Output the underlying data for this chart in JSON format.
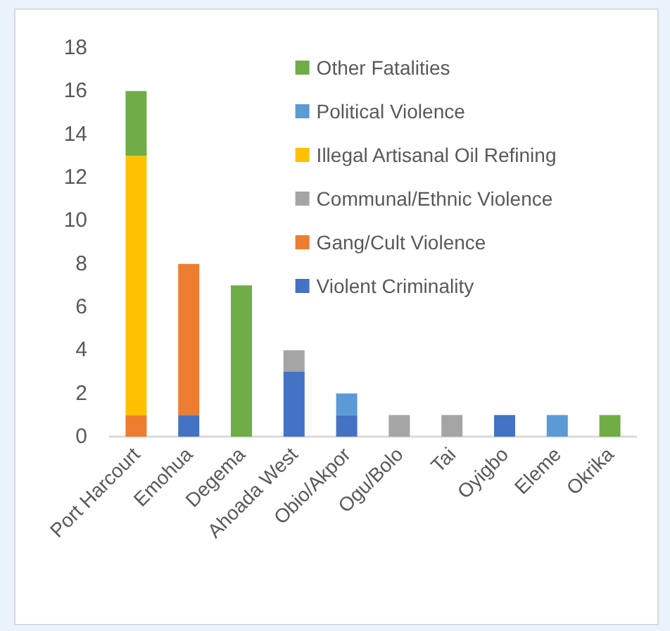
{
  "chart_data": {
    "type": "bar",
    "stacked": true,
    "categories": [
      "Port Harcourt",
      "Emohua",
      "Degema",
      "Ahoada West",
      "Obio/Akpor",
      "Ogu/Bolo",
      "Tai",
      "Oyigbo",
      "Eleme",
      "Okrika"
    ],
    "series": [
      {
        "name": "Violent Criminality",
        "color": "#4472c4",
        "values": [
          null,
          1,
          null,
          3,
          1,
          null,
          null,
          1,
          null,
          null
        ]
      },
      {
        "name": "Gang/Cult Violence",
        "color": "#ed7d31",
        "values": [
          1,
          7,
          null,
          null,
          null,
          null,
          null,
          null,
          null,
          null
        ]
      },
      {
        "name": "Communal/Ethnic Violence",
        "color": "#a5a5a5",
        "values": [
          null,
          null,
          null,
          1,
          null,
          1,
          1,
          null,
          null,
          null
        ]
      },
      {
        "name": "Illegal Artisanal Oil Refining",
        "color": "#ffc000",
        "values": [
          12,
          null,
          null,
          null,
          null,
          null,
          null,
          null,
          null,
          null
        ]
      },
      {
        "name": "Political Violence",
        "color": "#5b9bd5",
        "values": [
          null,
          null,
          null,
          null,
          1,
          null,
          null,
          null,
          1,
          null
        ]
      },
      {
        "name": "Other Fatalities",
        "color": "#70ad47",
        "values": [
          3,
          null,
          7,
          null,
          null,
          null,
          null,
          null,
          null,
          1
        ]
      }
    ],
    "ylim": [
      0,
      18
    ],
    "yticks": [
      0,
      2,
      4,
      6,
      8,
      10,
      12,
      14,
      16,
      18
    ],
    "grid": false,
    "legend": "top right"
  }
}
